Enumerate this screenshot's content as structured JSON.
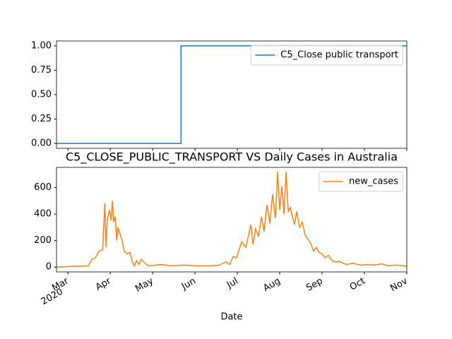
{
  "chart_data": [
    {
      "type": "line",
      "xlim": [
        2.73,
        11.0
      ],
      "xticks": [
        3,
        4,
        5,
        6,
        7,
        8,
        9,
        10,
        11
      ],
      "ylim": [
        -0.05,
        1.05
      ],
      "yticks": [
        {
          "value": 0,
          "label": "0.00"
        },
        {
          "value": 0.25,
          "label": "0.25"
        },
        {
          "value": 0.5,
          "label": "0.50"
        },
        {
          "value": 0.75,
          "label": "0.75"
        },
        {
          "value": 1,
          "label": "1.00"
        }
      ],
      "legend": "upper right",
      "series": [
        {
          "name": "C5_Close public transport",
          "color": "#1f77b4",
          "x": [
            2.73,
            5.67,
            5.67,
            11.0
          ],
          "values": [
            0,
            0,
            1,
            1
          ]
        }
      ]
    },
    {
      "type": "line",
      "title": "C5_CLOSE_PUBLIC_TRANSPORT VS Daily Cases in Australia",
      "x_label": "Date",
      "xtick_year": "2020",
      "xlim": [
        2.73,
        11.0
      ],
      "xticks": [
        {
          "value": 3,
          "label": "Mar"
        },
        {
          "value": 4,
          "label": "Apr"
        },
        {
          "value": 5,
          "label": "May"
        },
        {
          "value": 6,
          "label": "Jun"
        },
        {
          "value": 7,
          "label": "Jul"
        },
        {
          "value": 8,
          "label": "Aug"
        },
        {
          "value": 9,
          "label": "Sep"
        },
        {
          "value": 10,
          "label": "Oct"
        },
        {
          "value": 11,
          "label": "Nov"
        }
      ],
      "ylim": [
        -36,
        752
      ],
      "yticks": [
        0,
        200,
        400,
        600
      ],
      "legend": "upper right",
      "series": [
        {
          "name": "new_cases",
          "color": "#ff7f0e",
          "x": [
            2.73,
            3.07,
            3.48,
            3.57,
            3.65,
            3.73,
            3.82,
            3.87,
            3.9,
            3.93,
            3.98,
            4.02,
            4.05,
            4.08,
            4.12,
            4.15,
            4.18,
            4.23,
            4.28,
            4.33,
            4.4,
            4.47,
            4.52,
            4.57,
            4.62,
            4.68,
            4.73,
            4.82,
            4.9,
            5.07,
            5.23,
            5.4,
            5.73,
            6.07,
            6.4,
            6.57,
            6.73,
            6.82,
            6.9,
            6.98,
            7.1,
            7.2,
            7.32,
            7.37,
            7.43,
            7.5,
            7.57,
            7.63,
            7.7,
            7.77,
            7.83,
            7.9,
            7.95,
            8.0,
            8.05,
            8.1,
            8.15,
            8.2,
            8.25,
            8.3,
            8.35,
            8.4,
            8.47,
            8.53,
            8.6,
            8.67,
            8.73,
            8.8,
            8.87,
            8.93,
            9.0,
            9.07,
            9.15,
            9.23,
            9.32,
            9.4,
            9.57,
            9.73,
            9.9,
            10.07,
            10.23,
            10.4,
            10.57,
            10.73,
            10.9,
            11.0
          ],
          "values": [
            0,
            5,
            10,
            60,
            70,
            120,
            130,
            480,
            150,
            360,
            430,
            350,
            500,
            340,
            380,
            200,
            300,
            250,
            200,
            120,
            100,
            110,
            40,
            10,
            50,
            20,
            60,
            30,
            10,
            15,
            20,
            10,
            15,
            10,
            10,
            15,
            40,
            20,
            80,
            70,
            190,
            150,
            320,
            170,
            290,
            230,
            380,
            270,
            470,
            330,
            550,
            370,
            720,
            430,
            610,
            400,
            720,
            420,
            450,
            380,
            320,
            420,
            300,
            340,
            240,
            210,
            180,
            120,
            150,
            110,
            100,
            70,
            90,
            50,
            40,
            45,
            20,
            30,
            15,
            20,
            15,
            25,
            10,
            15,
            12,
            8
          ]
        }
      ]
    }
  ]
}
